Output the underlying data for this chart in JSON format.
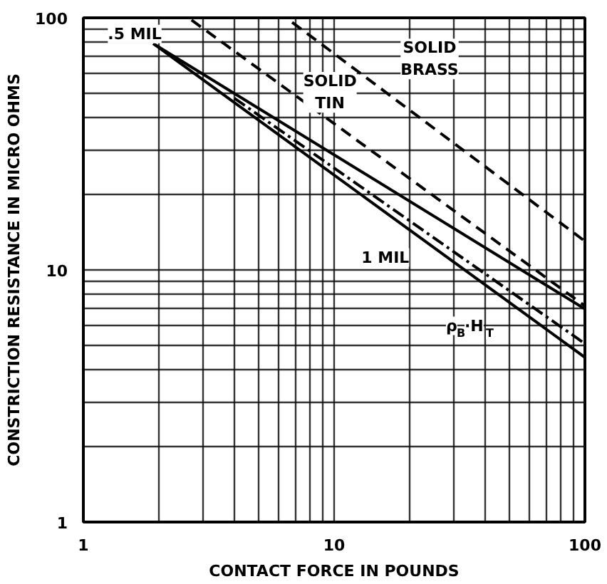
{
  "chart_data": {
    "type": "line",
    "xlabel": "CONTACT FORCE IN POUNDS",
    "ylabel": "CONSTRICTION RESISTANCE IN MICRO OHMS",
    "log": "xy",
    "xlim": [
      1,
      100
    ],
    "ylim": [
      1,
      100
    ],
    "grid": true,
    "marker": "none",
    "xticks": [
      1,
      {
        "value": 2,
        "label": null
      },
      {
        "value": 3,
        "label": null
      },
      {
        "value": 4,
        "label": null
      },
      {
        "value": 5,
        "label": null
      },
      {
        "value": 6,
        "label": null
      },
      {
        "value": 7,
        "label": null
      },
      {
        "value": 8,
        "label": null
      },
      {
        "value": 9,
        "label": null
      },
      10,
      {
        "value": 20,
        "label": null
      },
      {
        "value": 30,
        "label": null
      },
      {
        "value": 40,
        "label": null
      },
      {
        "value": 50,
        "label": null
      },
      {
        "value": 60,
        "label": null
      },
      {
        "value": 70,
        "label": null
      },
      {
        "value": 80,
        "label": null
      },
      {
        "value": 90,
        "label": null
      },
      100
    ],
    "yticks": [
      1,
      {
        "value": 2,
        "label": null
      },
      {
        "value": 3,
        "label": null
      },
      {
        "value": 4,
        "label": null
      },
      {
        "value": 5,
        "label": null
      },
      {
        "value": 6,
        "label": null
      },
      {
        "value": 7,
        "label": null
      },
      {
        "value": 8,
        "label": null
      },
      {
        "value": 9,
        "label": null
      },
      10,
      {
        "value": 20,
        "label": null
      },
      {
        "value": 30,
        "label": null
      },
      {
        "value": 40,
        "label": null
      },
      {
        "value": 50,
        "label": null
      },
      {
        "value": 60,
        "label": null
      },
      {
        "value": 70,
        "label": null
      },
      {
        "value": 80,
        "label": null
      },
      {
        "value": 90,
        "label": null
      },
      100
    ],
    "series": [
      {
        "color": "#000000",
        "line_style": "dashed",
        "x": [
          6.8,
          100
        ],
        "values": [
          96,
          13
        ]
      },
      {
        "color": "#000000",
        "line_style": "dashed",
        "x": [
          2.7,
          100
        ],
        "values": [
          98,
          7.2
        ]
      },
      {
        "color": "#000000",
        "line_style": "solid",
        "x": [
          1.9,
          100
        ],
        "values": [
          79,
          7.0
        ]
      },
      {
        "color": "#000000",
        "line_style": "solid",
        "x": [
          1.9,
          100
        ],
        "values": [
          79,
          4.5
        ]
      },
      {
        "color": "#000000",
        "line_style": "dashdot",
        "x": [
          4.0,
          100
        ],
        "values": [
          48,
          5.1
        ]
      }
    ],
    "annotations": [
      {
        "text": ".5 MIL",
        "x": 2.5,
        "y": 70
      },
      {
        "text": "SOLID TIN",
        "x": 6.5,
        "y": 52
      },
      {
        "text": "SOLID BRASS",
        "x": 20,
        "y": 43
      },
      {
        "text": "1 MIL",
        "x": 27,
        "y": 11.5
      },
      {
        "text": "ρ$_{B}$·H$_{T}$",
        "x": 44,
        "y": 8.2
      }
    ]
  }
}
